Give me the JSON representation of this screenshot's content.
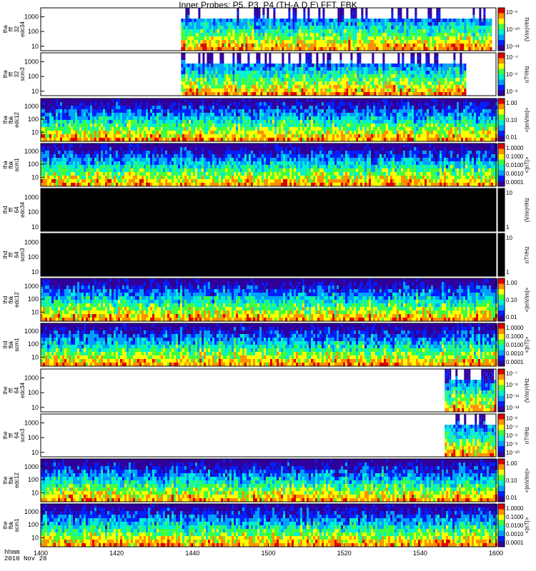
{
  "title": "Inner Probes: P5, P3, P4 (TH-A,D,E) FFT, FBK",
  "footer": {
    "line1": "hhmm",
    "line2": "2010 Nov 28"
  },
  "chart_data": {
    "type": "heatmap",
    "x_ticks": [
      "1400",
      "1420",
      "1440",
      "1500",
      "1520",
      "1540",
      "1600"
    ],
    "x_range_minutes": [
      0,
      120
    ],
    "colors": [
      "#30009a",
      "#0020ff",
      "#00a0ff",
      "#00f0d0",
      "#40ff40",
      "#ffff00",
      "#ff9000",
      "#e00000"
    ],
    "panels": [
      {
        "label": [
          "tha",
          "fff",
          "32",
          "edc34"
        ],
        "yticks": [
          "1000",
          "100",
          "10"
        ],
        "ymin": 5,
        "ymax": 4000,
        "cb_ticks": [
          "10⁻⁶",
          "10⁻¹⁰",
          "10⁻¹³"
        ],
        "cb_label": "(V/m)²/Hz",
        "data_range_minutes": [
          37,
          118.5
        ]
      },
      {
        "label": [
          "tha",
          "fff",
          "32",
          "scm3"
        ],
        "yticks": [
          "1000",
          "100",
          "10"
        ],
        "ymin": 5,
        "ymax": 4000,
        "cb_ticks": [
          "10⁻⁴",
          "10⁻⁶",
          "10⁻⁸"
        ],
        "cb_label": "nT²/Hz",
        "data_range_minutes": [
          37,
          112
        ]
      },
      {
        "label": [
          "tha",
          "fbk",
          "edc12"
        ],
        "yticks": [
          "1000",
          "100",
          "10"
        ],
        "ymin": 2,
        "ymax": 4000,
        "cb_ticks": [
          "1.00",
          "0.10",
          "0.01"
        ],
        "cb_label": "<|mV/m|>",
        "data_range_minutes": [
          0,
          120
        ]
      },
      {
        "label": [
          "tha",
          "fbk",
          "scm1"
        ],
        "yticks": [
          "1000",
          "100",
          "10"
        ],
        "ymin": 2,
        "ymax": 4000,
        "cb_ticks": [
          "1.0000",
          "0.1000",
          "0.0100",
          "0.0010",
          "0.0001"
        ],
        "cb_label": "<|nT|>",
        "data_range_minutes": [
          0,
          120
        ]
      },
      {
        "label": [
          "thd",
          "fff",
          "64",
          "edc34"
        ],
        "yticks": [
          "1000",
          "100",
          "10"
        ],
        "ymin": 5,
        "ymax": 4000,
        "cb_ticks": [
          "10",
          "1"
        ],
        "cb_label": "(V/m)²/Hz",
        "data_range_minutes": [
          0,
          120
        ],
        "black": true
      },
      {
        "label": [
          "thd",
          "fff",
          "64",
          "scm3"
        ],
        "yticks": [
          "1000",
          "100",
          "10"
        ],
        "ymin": 5,
        "ymax": 4000,
        "cb_ticks": [
          "10",
          "1"
        ],
        "cb_label": "nT²/Hz",
        "data_range_minutes": [
          0,
          120
        ],
        "black": true
      },
      {
        "label": [
          "thd",
          "fbk",
          "edc12"
        ],
        "yticks": [
          "1000",
          "100",
          "10"
        ],
        "ymin": 2,
        "ymax": 4000,
        "cb_ticks": [
          "1.00",
          "0.10",
          "0.01"
        ],
        "cb_label": "<|mV/m|>",
        "data_range_minutes": [
          0,
          120
        ]
      },
      {
        "label": [
          "thd",
          "fbk",
          "scm1"
        ],
        "yticks": [
          "1000",
          "100",
          "10"
        ],
        "ymin": 2,
        "ymax": 4000,
        "cb_ticks": [
          "1.0000",
          "0.1000",
          "0.0100",
          "0.0010",
          "0.0001"
        ],
        "cb_label": "<|nT|>",
        "data_range_minutes": [
          0,
          120
        ]
      },
      {
        "label": [
          "the",
          "fff",
          "64",
          "edc34"
        ],
        "yticks": [
          "1000",
          "100",
          "10"
        ],
        "ymin": 5,
        "ymax": 4000,
        "cb_ticks": [
          "10⁻⁷",
          "10⁻⁹",
          "10⁻¹¹",
          "10⁻¹³"
        ],
        "cb_label": "(V/m)²/Hz",
        "data_range_minutes": [
          106.5,
          120
        ]
      },
      {
        "label": [
          "the",
          "fff",
          "64",
          "scm3"
        ],
        "yticks": [
          "1000",
          "100",
          "10"
        ],
        "ymin": 5,
        "ymax": 4000,
        "cb_ticks": [
          "10⁻²",
          "10⁻⁴",
          "10⁻⁶",
          "10⁻⁸",
          "10⁻¹⁰"
        ],
        "cb_label": "nT²/Hz",
        "data_range_minutes": [
          106.5,
          120
        ]
      },
      {
        "label": [
          "the",
          "fbk",
          "edc12"
        ],
        "yticks": [
          "1000",
          "100",
          "10"
        ],
        "ymin": 2,
        "ymax": 4000,
        "cb_ticks": [
          "1.00",
          "0.10",
          "0.01"
        ],
        "cb_label": "<|mV/m|>",
        "data_range_minutes": [
          0,
          120
        ]
      },
      {
        "label": [
          "the",
          "fbk",
          "scm1"
        ],
        "yticks": [
          "1000",
          "100",
          "10"
        ],
        "ymin": 2,
        "ymax": 4000,
        "cb_ticks": [
          "1.0000",
          "0.1000",
          "0.0100",
          "0.0010",
          "0.0001"
        ],
        "cb_label": "<|nT|>",
        "data_range_minutes": [
          0,
          120
        ]
      }
    ]
  }
}
